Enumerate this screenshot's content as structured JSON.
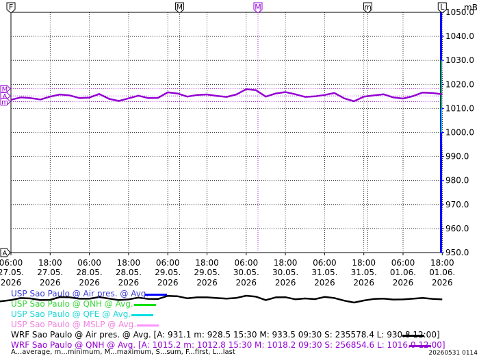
{
  "chart_data": {
    "type": "line",
    "unit": "mB",
    "y_ticks": [
      "1050.0",
      "1040.0",
      "1030.0",
      "1020.0",
      "1010.0",
      "1000.0",
      "990.0",
      "980.0",
      "970.0",
      "960.0",
      "950.0"
    ],
    "ylim": [
      950,
      1050
    ],
    "x_ticks": [
      {
        "time": "06:00",
        "date": "27.05.",
        "year": "2026"
      },
      {
        "time": "18:00",
        "date": "27.05.",
        "year": "2026"
      },
      {
        "time": "06:00",
        "date": "28.05.",
        "year": "2026"
      },
      {
        "time": "18:00",
        "date": "28.05.",
        "year": "2026"
      },
      {
        "time": "06:00",
        "date": "29.05.",
        "year": "2026"
      },
      {
        "time": "18:00",
        "date": "29.05.",
        "year": "2026"
      },
      {
        "time": "06:00",
        "date": "30.05.",
        "year": "2026"
      },
      {
        "time": "18:00",
        "date": "30.05.",
        "year": "2026"
      },
      {
        "time": "06:00",
        "date": "31.05.",
        "year": "2026"
      },
      {
        "time": "18:00",
        "date": "31.05.",
        "year": "2026"
      },
      {
        "time": "06:00",
        "date": "01.06.",
        "year": "2026"
      },
      {
        "time": "18:00",
        "date": "01.06.",
        "year": "2026"
      }
    ],
    "top_markers": [
      {
        "label": "F",
        "tick_index": 0,
        "color": "#000000"
      },
      {
        "label": "M",
        "tick_index": 4.3,
        "color": "#000000"
      },
      {
        "label": "M",
        "tick_index": 6.3,
        "color": "#9400d3"
      },
      {
        "label": "m",
        "tick_index": 9.1,
        "color": "#000000"
      },
      {
        "label": "L",
        "tick_index": 11.0,
        "color": "#000000"
      }
    ],
    "left_markers": [
      {
        "label": "M",
        "value": 1018.2
      },
      {
        "label": "A",
        "value": 1015.2
      },
      {
        "label": "m",
        "value": 1012.8
      }
    ],
    "bottom_left_marker": "A",
    "series": [
      {
        "name": "WRF Sao Paulo @ QNH @ Avg.",
        "color": "#9400d3",
        "x_tick_index": [
          0,
          0.25,
          0.5,
          0.75,
          1,
          1.25,
          1.5,
          1.75,
          2,
          2.25,
          2.5,
          2.75,
          3,
          3.25,
          3.5,
          3.75,
          4,
          4.25,
          4.5,
          4.75,
          5,
          5.25,
          5.5,
          5.75,
          6,
          6.25,
          6.5,
          6.75,
          7,
          7.25,
          7.5,
          7.75,
          8,
          8.25,
          8.5,
          8.75,
          9,
          9.25,
          9.5,
          9.75,
          10,
          10.25,
          10.5,
          10.75,
          11
        ],
        "values": [
          1013.6,
          1014.6,
          1014.3,
          1013.7,
          1014.9,
          1015.8,
          1015.4,
          1014.3,
          1014.5,
          1016.0,
          1014.0,
          1013.1,
          1014.2,
          1015.3,
          1014.3,
          1014.4,
          1016.7,
          1016.2,
          1014.9,
          1015.6,
          1015.8,
          1015.2,
          1014.8,
          1015.8,
          1018.0,
          1017.6,
          1014.9,
          1016.2,
          1016.8,
          1015.9,
          1014.8,
          1015.0,
          1015.6,
          1016.4,
          1014.2,
          1013.0,
          1014.9,
          1015.4,
          1015.9,
          1014.6,
          1014.1,
          1015.1,
          1016.6,
          1016.4,
          1015.9
        ]
      },
      {
        "name": "WRF Sao Paulo @ Air pres. @ Avg.",
        "color": "#000000",
        "x_tick_index": [
          -0.3,
          0,
          0.25,
          0.5,
          0.75,
          1,
          1.25,
          1.5,
          1.75,
          2,
          2.25,
          2.5,
          2.75,
          3,
          3.25,
          3.5,
          3.75,
          4,
          4.25,
          4.5,
          4.75,
          5,
          5.25,
          5.5,
          5.75,
          6,
          6.25,
          6.5,
          6.75,
          7,
          7.25,
          7.5,
          7.75,
          8,
          8.25,
          8.5,
          8.75,
          9,
          9.25,
          9.5,
          9.75,
          10,
          10.25,
          10.5,
          10.75,
          11
        ],
        "values": [
          929.3,
          930.3,
          931.8,
          931.5,
          930.3,
          930.5,
          932.5,
          932.3,
          931.3,
          931.3,
          932.5,
          931.4,
          930.3,
          930.8,
          932.1,
          931.2,
          931.1,
          933.4,
          933.1,
          931.6,
          932.3,
          932.3,
          931.8,
          931.4,
          931.9,
          933.5,
          932.8,
          930.3,
          932.3,
          932.4,
          930.9,
          931.5,
          931.0,
          932.6,
          931.8,
          929.9,
          928.5,
          930.0,
          931.1,
          931.4,
          930.7,
          930.8,
          931.3,
          931.9,
          931.2,
          930.8
        ]
      }
    ]
  },
  "legend": [
    {
      "text": "USP Sao Paulo @ Air pres. @ Avg.",
      "text_color": "#3a3ad6",
      "line_color": "#0000ff",
      "line_x": 196,
      "line_w": 32
    },
    {
      "text": "USP Sao Paulo @ QNH @ Avg.",
      "text_color": "#3ad63a",
      "line_color": "#00e000",
      "line_x": 180,
      "line_w": 32
    },
    {
      "text": "USP Sao Paulo @ QFE @ Avg.",
      "text_color": "#1fd6d6",
      "line_color": "#00e0e0",
      "line_x": 176,
      "line_w": 32
    },
    {
      "text": "USP Sao Paulo @ MSLP @ Avg.",
      "text_color": "#f080e0",
      "line_color": "#ff90ff",
      "line_x": 184,
      "line_w": 32
    },
    {
      "text": "WRF Sao Paulo @ Air pres. @ Avg. [A: 931.1 m: 928.5 15:30 M: 933.5 09:30 S: 235578.4 L: 930.8 12:00]",
      "text_color": "#000000",
      "line_color": "#000000",
      "line_x": 572,
      "line_w": 32
    },
    {
      "text": "WRF Sao Paulo @ QNH @ Avg. [A: 1015.2 m: 1012.8 15:30 M: 1018.2 09:30 S: 256854.6 L: 1016.0 12:00]",
      "text_color": "#9400d3",
      "line_color": "#9400d3",
      "line_x": 582,
      "line_w": 32
    }
  ],
  "footer_legend": "A...average, m...minimum, M...maximum, S...sum, F...first, L...last",
  "footer_stamp": "20260531 0114"
}
